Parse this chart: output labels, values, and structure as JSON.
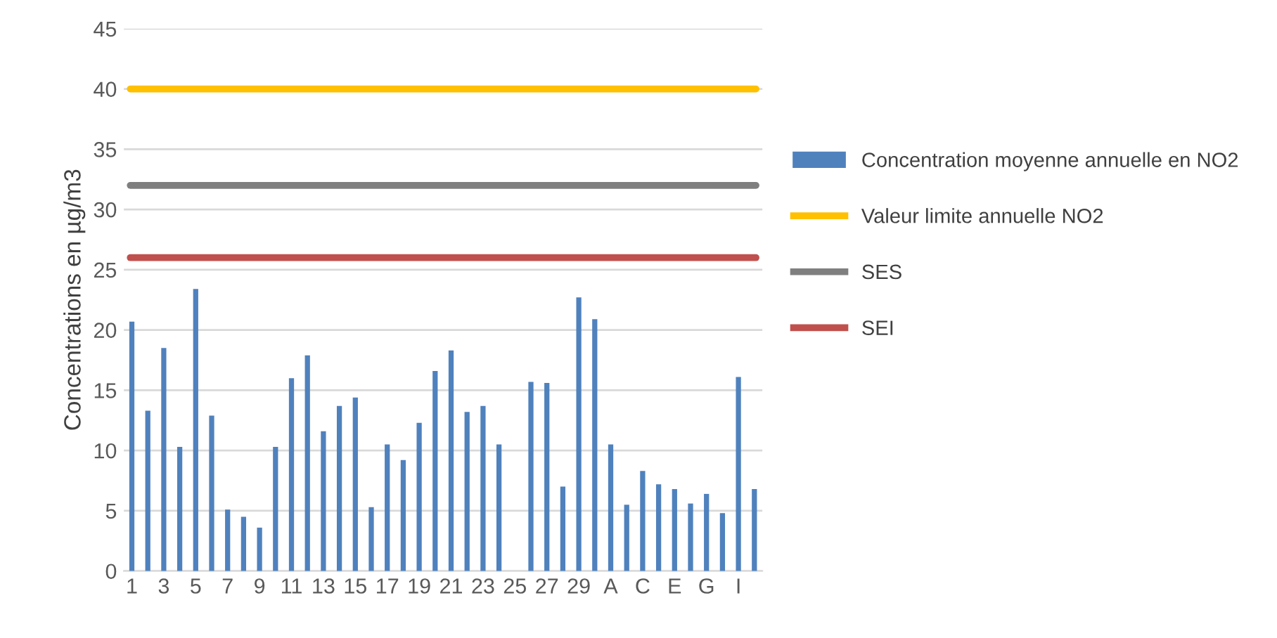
{
  "chart_data": {
    "type": "bar",
    "ylabel": "Concentrations en µg/m3",
    "categories": [
      "1",
      null,
      "3",
      null,
      "5",
      null,
      "7",
      null,
      "9",
      null,
      "11",
      null,
      "13",
      null,
      "15",
      null,
      "17",
      null,
      "19",
      null,
      "21",
      null,
      "23",
      null,
      "25",
      null,
      "27",
      null,
      "29",
      null,
      "A",
      null,
      "C",
      null,
      "E",
      null,
      "G",
      null,
      "I",
      null
    ],
    "series": [
      {
        "name": "Concentration moyenne annuelle en NO2",
        "color": "#4f81bd",
        "values": [
          20.7,
          13.3,
          18.5,
          10.3,
          23.4,
          12.9,
          5.1,
          4.5,
          3.6,
          10.3,
          16.0,
          17.9,
          11.6,
          13.7,
          14.4,
          5.3,
          10.5,
          9.2,
          12.3,
          16.6,
          18.3,
          13.2,
          13.7,
          10.5,
          null,
          15.7,
          15.6,
          7.0,
          22.7,
          20.9,
          10.5,
          5.5,
          8.3,
          7.2,
          6.8,
          5.6,
          6.4,
          4.8,
          16.1,
          6.8
        ]
      }
    ],
    "ref_lines": [
      {
        "axis": "y",
        "value": 40,
        "label": "Valeur limite annuelle NO2",
        "color": "#ffc000"
      },
      {
        "axis": "y",
        "value": 32,
        "label": "SES",
        "color": "#7f7f7f"
      },
      {
        "axis": "y",
        "value": 26,
        "label": "SEI",
        "color": "#c0504d"
      }
    ],
    "ylim": [
      0,
      45
    ],
    "yticks": [
      0,
      5,
      10,
      15,
      20,
      25,
      30,
      35,
      40,
      45
    ],
    "grid": "y",
    "legend": "right"
  }
}
